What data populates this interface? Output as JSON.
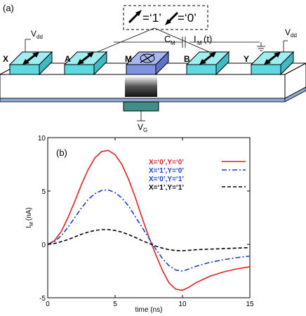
{
  "figure": {
    "panel_a": {
      "label": "(a)",
      "legend_one": "=‘1’",
      "legend_zero": "=‘0’",
      "cm_label": "C",
      "cm_sub": "M",
      "im_label": "I",
      "im_sub": "M",
      "im_suffix": "(t)",
      "vdd_label": "V",
      "vdd_sub": "dd",
      "vg_label": "V",
      "vg_sub": "G",
      "node_labels": [
        "X",
        "A",
        "M",
        "B",
        "Y"
      ]
    },
    "panel_b": {
      "label": "(b)"
    }
  },
  "chart_data": {
    "type": "line",
    "xlabel": "time (ns)",
    "ylabel_main": "I",
    "ylabel_sub": "M",
    "ylabel_suffix": "(nA)",
    "xlim": [
      0,
      15
    ],
    "ylim": [
      -5,
      10
    ],
    "xticks": [
      0,
      5,
      10,
      15
    ],
    "yticks": [
      -5,
      0,
      5,
      10
    ],
    "legend_position": "top-right",
    "series": [
      {
        "name": "X=‘0’,Y=‘0’",
        "color": "#e02020",
        "style": "solid",
        "points": [
          [
            0,
            0
          ],
          [
            0.5,
            0.35
          ],
          [
            1,
            1.2
          ],
          [
            1.5,
            2.5
          ],
          [
            2,
            4.0
          ],
          [
            2.5,
            5.6
          ],
          [
            3,
            7.0
          ],
          [
            3.5,
            8.1
          ],
          [
            4,
            8.7
          ],
          [
            4.5,
            8.8
          ],
          [
            5,
            8.4
          ],
          [
            5.5,
            7.5
          ],
          [
            6,
            6.1
          ],
          [
            6.5,
            4.4
          ],
          [
            7,
            2.5
          ],
          [
            7.5,
            0.7
          ],
          [
            8,
            -0.9
          ],
          [
            8.5,
            -2.4
          ],
          [
            9,
            -3.6
          ],
          [
            9.5,
            -4.2
          ],
          [
            10,
            -4.3
          ],
          [
            10.5,
            -4.0
          ],
          [
            11,
            -3.6
          ],
          [
            12,
            -3.0
          ],
          [
            13,
            -2.6
          ],
          [
            14,
            -2.3
          ],
          [
            15,
            -2.1
          ]
        ]
      },
      {
        "name": "X=‘1’,Y=‘0’",
        "color": "#1a3fd0",
        "style": "dashdot",
        "points": [
          [
            0,
            0
          ],
          [
            0.5,
            0.25
          ],
          [
            1,
            0.8
          ],
          [
            1.5,
            1.6
          ],
          [
            2,
            2.5
          ],
          [
            2.5,
            3.4
          ],
          [
            3,
            4.2
          ],
          [
            3.5,
            4.75
          ],
          [
            4,
            5.05
          ],
          [
            4.5,
            5.1
          ],
          [
            5,
            4.85
          ],
          [
            5.5,
            4.35
          ],
          [
            6,
            3.6
          ],
          [
            6.5,
            2.6
          ],
          [
            7,
            1.6
          ],
          [
            7.5,
            0.6
          ],
          [
            8,
            -0.4
          ],
          [
            8.5,
            -1.3
          ],
          [
            9,
            -2.0
          ],
          [
            9.5,
            -2.4
          ],
          [
            10,
            -2.5
          ],
          [
            10.5,
            -2.3
          ],
          [
            11,
            -2.05
          ],
          [
            12,
            -1.7
          ],
          [
            13,
            -1.45
          ],
          [
            14,
            -1.25
          ],
          [
            15,
            -1.1
          ]
        ]
      },
      {
        "name": "X=‘0’,Y=‘1’",
        "color": "#1a3fd0",
        "style": "dashdot",
        "points": []
      },
      {
        "name": "X=‘1’,Y=‘1’",
        "color": "#000000",
        "style": "dashed",
        "points": [
          [
            0,
            0
          ],
          [
            0.5,
            0.08
          ],
          [
            1,
            0.25
          ],
          [
            1.5,
            0.45
          ],
          [
            2,
            0.7
          ],
          [
            2.5,
            0.95
          ],
          [
            3,
            1.15
          ],
          [
            3.5,
            1.3
          ],
          [
            4,
            1.38
          ],
          [
            4.5,
            1.38
          ],
          [
            5,
            1.3
          ],
          [
            5.5,
            1.15
          ],
          [
            6,
            0.92
          ],
          [
            6.5,
            0.65
          ],
          [
            7,
            0.35
          ],
          [
            7.5,
            0.1
          ],
          [
            8,
            -0.15
          ],
          [
            8.5,
            -0.35
          ],
          [
            9,
            -0.5
          ],
          [
            9.5,
            -0.58
          ],
          [
            10,
            -0.6
          ],
          [
            10.5,
            -0.55
          ],
          [
            11,
            -0.5
          ],
          [
            12,
            -0.45
          ],
          [
            13,
            -0.4
          ],
          [
            14,
            -0.35
          ],
          [
            15,
            -0.3
          ]
        ]
      }
    ]
  }
}
